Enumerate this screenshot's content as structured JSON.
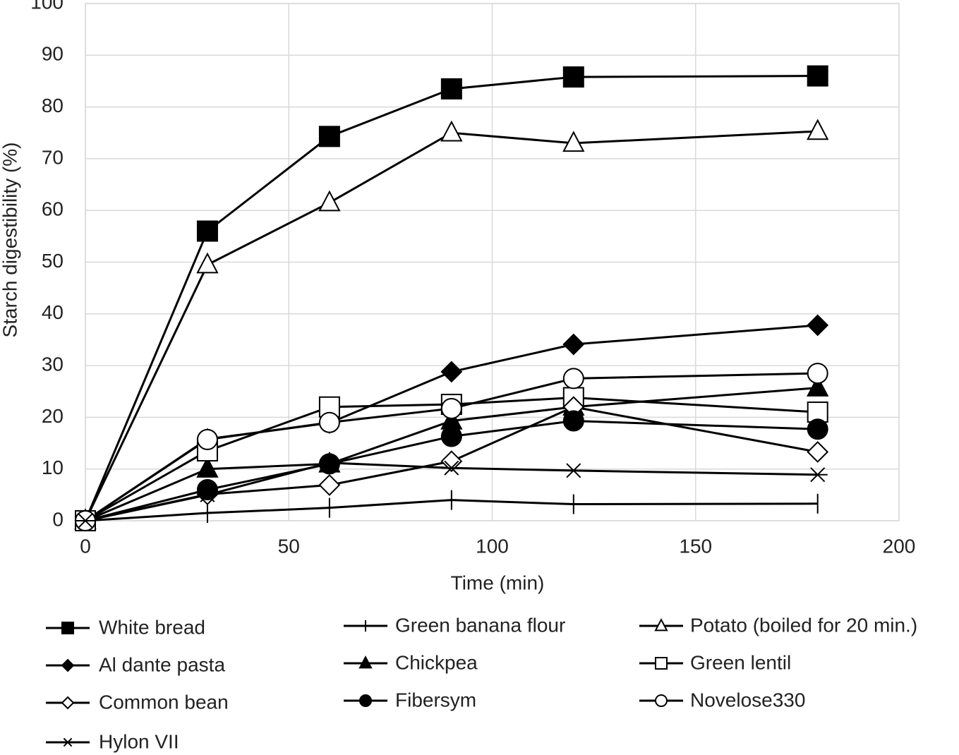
{
  "chart_data": {
    "type": "line",
    "x_label": "Time (min)",
    "y_label": "Starch digestibility (%)",
    "x": [
      0,
      30,
      60,
      90,
      120,
      180
    ],
    "xlim": [
      0,
      200
    ],
    "xticks": [
      0,
      50,
      100,
      150,
      200
    ],
    "ylim": [
      0,
      100
    ],
    "yticks": [
      0,
      10,
      20,
      30,
      40,
      50,
      60,
      70,
      80,
      90,
      100
    ],
    "grid": true,
    "legend": "bottom",
    "series": [
      {
        "name": "White bread",
        "color": "#000000",
        "marker": "square",
        "filled": true,
        "values": [
          0,
          56,
          74.3,
          83.5,
          85.8,
          86
        ]
      },
      {
        "name": "Green banana flour",
        "color": "#000000",
        "marker": "plus",
        "filled": true,
        "values": [
          0,
          1.5,
          2.5,
          4,
          3.2,
          3.3
        ]
      },
      {
        "name": "Potato (boiled for 20 min.)",
        "color": "#000000",
        "marker": "triangle",
        "filled": false,
        "values": [
          0,
          49.5,
          61.5,
          75,
          73,
          75.3
        ]
      },
      {
        "name": "Al dante pasta",
        "color": "#000000",
        "marker": "diamond",
        "filled": true,
        "values": [
          0,
          15.8,
          18.9,
          28.8,
          34.1,
          37.8
        ]
      },
      {
        "name": "Chickpea",
        "color": "#000000",
        "marker": "triangle",
        "filled": true,
        "values": [
          0,
          10,
          11,
          19.3,
          22,
          25.7
        ]
      },
      {
        "name": "Green lentil",
        "color": "#000000",
        "marker": "square",
        "filled": false,
        "values": [
          0,
          13.5,
          22,
          22.5,
          23.8,
          21
        ]
      },
      {
        "name": "Common bean",
        "color": "#000000",
        "marker": "diamond",
        "filled": false,
        "values": [
          0,
          5.1,
          6.9,
          11.5,
          22,
          13.3
        ]
      },
      {
        "name": "Fibersym",
        "color": "#000000",
        "marker": "circle",
        "filled": true,
        "values": [
          0,
          6,
          11,
          16.3,
          19.3,
          17.7
        ]
      },
      {
        "name": "Novelose330",
        "color": "#000000",
        "marker": "circle",
        "filled": false,
        "values": [
          0,
          15.7,
          19,
          21.7,
          27.5,
          28.5
        ]
      },
      {
        "name": "Hylon VII",
        "color": "#000000",
        "marker": "asterisk",
        "filled": true,
        "values": [
          0,
          5,
          11.2,
          10.2,
          9.7,
          8.9
        ]
      }
    ]
  }
}
